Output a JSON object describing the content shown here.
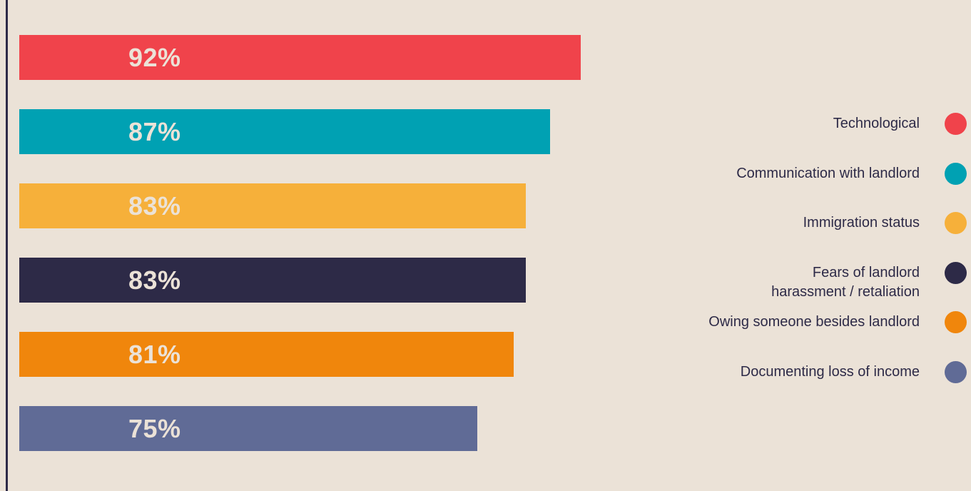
{
  "chart_data": {
    "type": "bar",
    "orientation": "horizontal",
    "categories": [
      "Technological",
      "Communication with landlord",
      "Immigration status",
      "Fears of landlord harassment / retaliation",
      "Owing someone besides landlord",
      "Documenting loss of income"
    ],
    "values": [
      92,
      87,
      83,
      83,
      81,
      75
    ],
    "value_labels": [
      "92%",
      "87%",
      "83%",
      "83%",
      "81%",
      "75%"
    ],
    "colors": [
      "#f0434b",
      "#00a1b3",
      "#f6b03a",
      "#2d2a47",
      "#f0860c",
      "#606b96"
    ],
    "xlim": [
      0,
      100
    ],
    "grid": false,
    "legend_position": "right"
  },
  "legend": [
    {
      "label": "Technological",
      "color": "#f0434b"
    },
    {
      "label": "Communication with landlord",
      "color": "#00a1b3"
    },
    {
      "label": "Immigration status",
      "color": "#f6b03a"
    },
    {
      "label": "Fears of landlord\nharassment / retaliation",
      "color": "#2d2a47"
    },
    {
      "label": "Owing someone besides landlord",
      "color": "#f0860c"
    },
    {
      "label": "Documenting loss of income",
      "color": "#606b96"
    }
  ]
}
